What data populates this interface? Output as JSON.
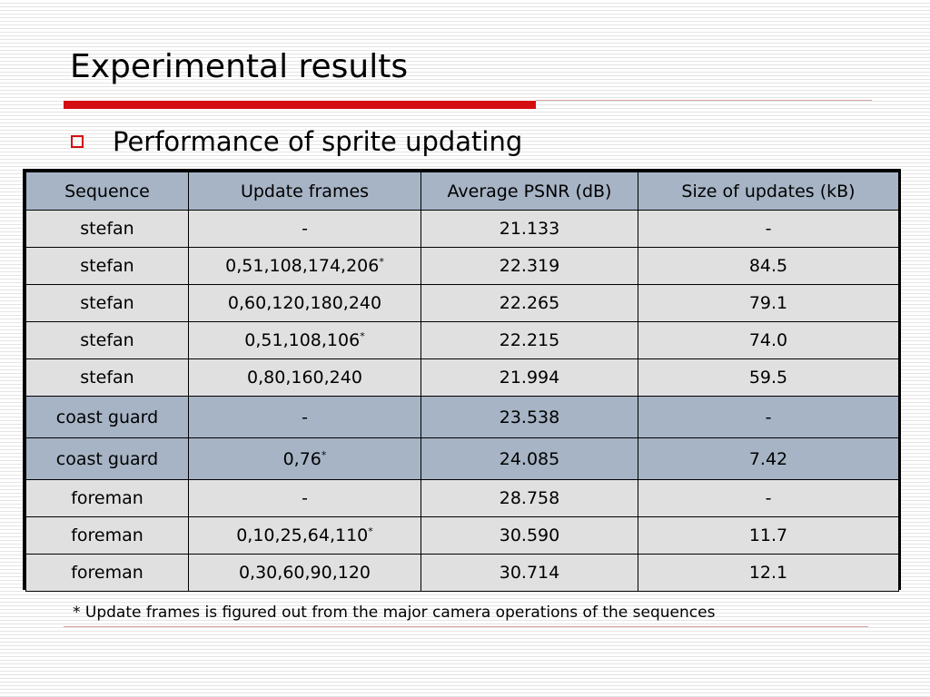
{
  "slide": {
    "title": "Experimental results",
    "bullet": "Performance of sprite updating",
    "footnote": "* Update frames is figured out from the major camera operations of the sequences"
  },
  "colors": {
    "accent_red": "#d40d12",
    "header_fill": "#a6b4c5",
    "row_fill": "#e0e0e0",
    "highlight_fill": "#a6b4c5"
  },
  "table": {
    "headers": [
      "Sequence",
      "Update frames",
      "Average PSNR (dB)",
      "Size of updates (kB)"
    ],
    "rows": [
      {
        "sequence": "stefan",
        "frames": "-",
        "mark": "",
        "psnr": "21.133",
        "size": "-"
      },
      {
        "sequence": "stefan",
        "frames": "0,51,108,174,206",
        "mark": "*",
        "psnr": "22.319",
        "size": "84.5"
      },
      {
        "sequence": "stefan",
        "frames": "0,60,120,180,240",
        "mark": "",
        "psnr": "22.265",
        "size": "79.1"
      },
      {
        "sequence": "stefan",
        "frames": "0,51,108,106",
        "mark": "*",
        "psnr": "22.215",
        "size": "74.0"
      },
      {
        "sequence": "stefan",
        "frames": "0,80,160,240",
        "mark": "",
        "psnr": "21.994",
        "size": "59.5"
      },
      {
        "sequence": "coast guard",
        "frames": "-",
        "mark": "",
        "psnr": "23.538",
        "size": "-"
      },
      {
        "sequence": "coast guard",
        "frames": "0,76",
        "mark": "*",
        "psnr": "24.085",
        "size": "7.42"
      },
      {
        "sequence": "foreman",
        "frames": "-",
        "mark": "",
        "psnr": "28.758",
        "size": "-"
      },
      {
        "sequence": "foreman",
        "frames": "0,10,25,64,110",
        "mark": "*",
        "psnr": "30.590",
        "size": "11.7"
      },
      {
        "sequence": "foreman",
        "frames": "0,30,60,90,120",
        "mark": "",
        "psnr": "30.714",
        "size": "12.1"
      }
    ]
  }
}
